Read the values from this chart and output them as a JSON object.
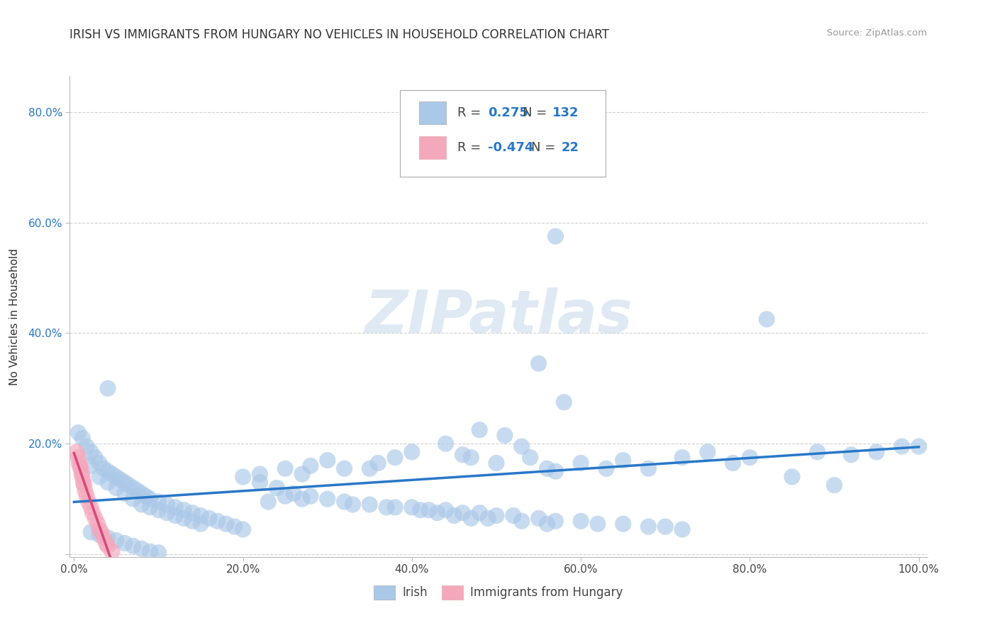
{
  "title": "IRISH VS IMMIGRANTS FROM HUNGARY NO VEHICLES IN HOUSEHOLD CORRELATION CHART",
  "source": "Source: ZipAtlas.com",
  "ylabel": "No Vehicles in Household",
  "xlim": [
    0.0,
    1.0
  ],
  "ylim": [
    0.0,
    0.85
  ],
  "x_tick_labels": [
    "0.0%",
    "20.0%",
    "40.0%",
    "60.0%",
    "80.0%",
    "100.0%"
  ],
  "y_tick_labels": [
    "",
    "20.0%",
    "40.0%",
    "60.0%",
    "80.0%"
  ],
  "legend_irish_r": "0.275",
  "legend_irish_n": "132",
  "legend_hungary_r": "-0.474",
  "legend_hungary_n": "22",
  "irish_color": "#aac8e8",
  "hungary_color": "#f4a8bc",
  "irish_line_color": "#2878c8",
  "hungary_line_color": "#d84878",
  "grid_color": "#cccccc",
  "background_color": "#ffffff",
  "title_fontsize": 12,
  "axis_fontsize": 11,
  "tick_fontsize": 11,
  "legend_fontsize": 13,
  "legend_value_color": "#2878c8"
}
